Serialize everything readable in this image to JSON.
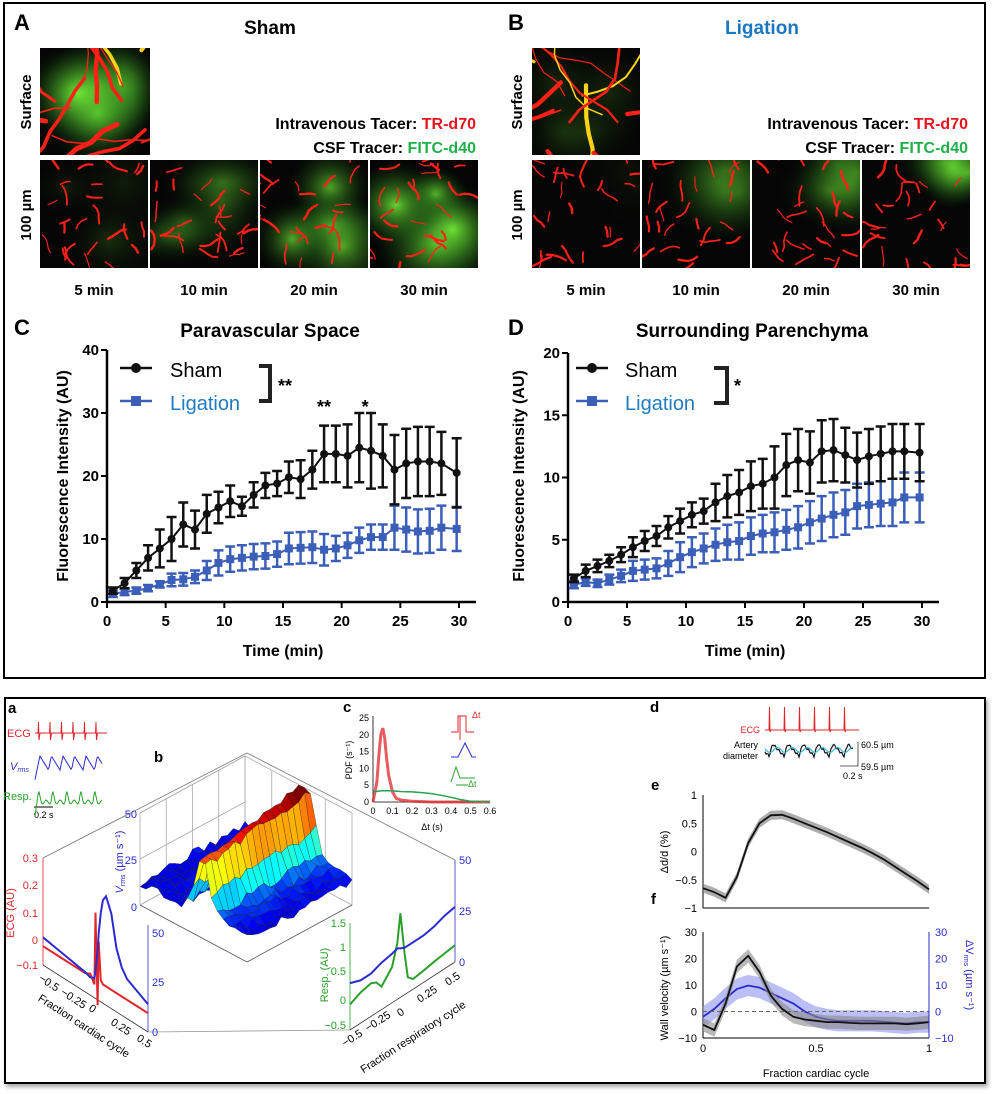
{
  "colors": {
    "sham": "#111111",
    "ligation": "#3b5fb8",
    "ligation_text": "#1f7cc4",
    "tracer_red": "#e8141c",
    "tracer_green": "#1fb04a",
    "ecg_red": "#e0262b",
    "vrms_blue": "#2b2bd0",
    "resp_green": "#2aa02a"
  },
  "panel_A": {
    "label": "A",
    "title": "Sham",
    "row_surface": "Surface",
    "row_depth": "100 µm",
    "iv_label": "Intravenous Tacer: ",
    "iv_value": "TR-d70",
    "csf_label": "CSF Tracer: ",
    "csf_value": "FITC-d40",
    "times": [
      "5 min",
      "10 min",
      "20 min",
      "30 min"
    ]
  },
  "panel_B": {
    "label": "B",
    "title": "Ligation",
    "row_surface": "Surface",
    "row_depth": "100 µm",
    "iv_label": "Intravenous Tacer: ",
    "iv_value": "TR-d70",
    "csf_label": "CSF Tracer: ",
    "csf_value": "FITC-d40",
    "times": [
      "5 min",
      "10 min",
      "20 min",
      "30 min"
    ]
  },
  "chart_data": [
    {
      "panel_label": "C",
      "type": "line",
      "title": "Paravascular Space",
      "xlabel": "Time (min)",
      "ylabel": "Fluorescence Intensity (AU)",
      "xlim": [
        0,
        30
      ],
      "ylim": [
        0,
        40
      ],
      "xticks": [
        0,
        5,
        10,
        15,
        20,
        25,
        30
      ],
      "yticks": [
        0,
        10,
        20,
        30,
        40
      ],
      "legend": "top-left",
      "legend_significance": "**",
      "x": [
        0.5,
        1.5,
        2.5,
        3.5,
        4.5,
        5.5,
        6.5,
        7.5,
        8.5,
        9.5,
        10.5,
        11.5,
        12.5,
        13.5,
        14.5,
        15.5,
        16.5,
        17.5,
        18.5,
        19.5,
        20.5,
        21.5,
        22.5,
        23.5,
        24.5,
        25.5,
        26.5,
        27.5,
        28.5,
        29.8
      ],
      "series": [
        {
          "name": "Sham",
          "marker": "circle",
          "values": [
            1.8,
            3,
            5,
            7,
            8.5,
            10,
            12.3,
            11.5,
            14,
            15,
            16,
            15.2,
            17,
            18.5,
            18.8,
            19.8,
            19.5,
            21,
            23.5,
            23.5,
            23.2,
            24.5,
            24,
            23.2,
            21,
            22,
            22.3,
            22.3,
            22,
            20.5
          ],
          "error": [
            0.5,
            0.8,
            1.2,
            2,
            3,
            3.5,
            3.5,
            3,
            3,
            2.5,
            2.5,
            1.5,
            2,
            2,
            2,
            2.5,
            3,
            3,
            4.5,
            4.5,
            5,
            5.5,
            6,
            5,
            5.5,
            5.5,
            5.5,
            5.5,
            5,
            5.5
          ]
        },
        {
          "name": "Ligation",
          "marker": "square",
          "values": [
            1.3,
            1.6,
            1.8,
            2.2,
            2.8,
            3.5,
            3.6,
            4,
            5,
            6.2,
            6.8,
            7,
            7.2,
            7.3,
            7.6,
            8.5,
            8.6,
            8.7,
            8.3,
            8.5,
            9,
            9.8,
            10.3,
            10.3,
            11.8,
            11.5,
            11.2,
            11.3,
            11.8,
            11.6
          ],
          "error": [
            0.5,
            0.5,
            0.5,
            0.5,
            0.5,
            1,
            1,
            1,
            1.5,
            2,
            2,
            2,
            2,
            2,
            2,
            2.5,
            2.5,
            2.5,
            2.5,
            2,
            2,
            2,
            2,
            2,
            3.5,
            3.5,
            3.5,
            3.5,
            3.5,
            3.5
          ]
        }
      ],
      "annotations": [
        {
          "x": 18.5,
          "label": "**"
        },
        {
          "x": 22,
          "label": "*"
        }
      ]
    },
    {
      "panel_label": "D",
      "type": "line",
      "title": "Surrounding Parenchyma",
      "xlabel": "Time (min)",
      "ylabel": "Fluorescence Intensity (AU)",
      "xlim": [
        0,
        30
      ],
      "ylim": [
        0,
        20
      ],
      "xticks": [
        0,
        5,
        10,
        15,
        20,
        25,
        30
      ],
      "yticks": [
        0,
        5,
        10,
        15,
        20
      ],
      "legend": "top-left",
      "legend_significance": "*",
      "x": [
        0.5,
        1.5,
        2.5,
        3.5,
        4.5,
        5.5,
        6.5,
        7.5,
        8.5,
        9.5,
        10.5,
        11.5,
        12.5,
        13.5,
        14.5,
        15.5,
        16.5,
        17.5,
        18.5,
        19.5,
        20.5,
        21.5,
        22.5,
        23.5,
        24.5,
        25.5,
        26.5,
        27.5,
        28.5,
        29.8
      ],
      "series": [
        {
          "name": "Sham",
          "marker": "circle",
          "values": [
            1.9,
            2.5,
            2.9,
            3.3,
            3.8,
            4.4,
            4.9,
            5.3,
            6,
            6.5,
            7,
            7.3,
            8,
            8.5,
            8.8,
            9.3,
            9.5,
            10,
            11,
            11.4,
            11.2,
            12.1,
            12.2,
            11.8,
            11.4,
            11.7,
            11.9,
            12.1,
            12.1,
            12.0
          ],
          "error": [
            0.3,
            0.5,
            0.5,
            0.5,
            0.6,
            0.8,
            0.8,
            0.8,
            0.9,
            1,
            1,
            1,
            1.5,
            1.7,
            1.8,
            2,
            2,
            2.5,
            2.5,
            2.5,
            2.5,
            2.5,
            2.5,
            2.2,
            2.2,
            2.2,
            2.2,
            2.2,
            2.2,
            2.3
          ]
        },
        {
          "name": "Ligation",
          "marker": "square",
          "values": [
            1.4,
            1.6,
            1.5,
            1.8,
            2.1,
            2.5,
            2.6,
            2.7,
            3.1,
            3.6,
            4.0,
            4.3,
            4.6,
            4.8,
            4.9,
            5.3,
            5.5,
            5.6,
            5.8,
            6.0,
            6.4,
            6.7,
            7.0,
            7.2,
            7.7,
            7.8,
            7.9,
            8.0,
            8.4,
            8.4
          ],
          "error": [
            0.3,
            0.3,
            0.3,
            0.4,
            0.5,
            0.8,
            0.8,
            0.8,
            1,
            1.2,
            1.2,
            1.2,
            1.3,
            1.4,
            1.5,
            1.5,
            1.5,
            1.6,
            1.6,
            1.7,
            1.7,
            1.8,
            1.8,
            1.8,
            1.8,
            1.8,
            1.8,
            1.9,
            2,
            2
          ]
        }
      ]
    },
    {
      "panel_label": "a",
      "type": "line",
      "traces": [
        {
          "label": "ECG"
        },
        {
          "label_main": "V",
          "label_sub": "rms"
        },
        {
          "label": "Resp."
        }
      ],
      "scale_bar": "0.2 s"
    },
    {
      "panel_label": "b",
      "type": "area",
      "z_label_main": "V",
      "z_label_sub": "rms",
      "z_label_unit": " (µm s⁻¹)",
      "zticks": [
        "0",
        "25",
        "50"
      ],
      "cardiac": {
        "xlabel": "Fraction cardiac cycle",
        "xticks": [
          "−0.5",
          "−0.25",
          "0",
          "0.25",
          "0.5"
        ],
        "left_label": "ECG (AU)",
        "left_ticks": [
          "0.3",
          "0.2",
          "0.1",
          "0",
          "−0.1"
        ],
        "right_ticks": [
          "50",
          "25",
          "0"
        ],
        "x": [
          -0.5,
          -0.4,
          -0.3,
          -0.2,
          -0.1,
          -0.05,
          -0.01,
          0.0,
          0.02,
          0.03,
          0.05,
          0.07,
          0.1,
          0.15,
          0.2,
          0.25,
          0.3,
          0.4,
          0.5
        ],
        "ecg": [
          -0.03,
          -0.03,
          -0.03,
          -0.03,
          -0.03,
          -0.02,
          -0.05,
          0.22,
          -0.12,
          0.12,
          -0.02,
          -0.03,
          -0.03,
          -0.03,
          -0.03,
          -0.03,
          -0.03,
          -0.03,
          -0.03
        ],
        "vrms": [
          14,
          13,
          12,
          11,
          10,
          9,
          10,
          14,
          25,
          34,
          45,
          52,
          55,
          48,
          32,
          24,
          20,
          17,
          14
        ]
      },
      "respiratory": {
        "xlabel": "Fraction respiratory cycle",
        "xticks": [
          "−0.5",
          "−0.25",
          "0",
          "0.25",
          "0.5"
        ],
        "left_label": "Resp. (AU)",
        "left_ticks": [
          "1.5",
          "1",
          "0.5",
          "0",
          "−0.5"
        ],
        "right_ticks": [
          "50",
          "25",
          "0"
        ],
        "x": [
          -0.5,
          -0.4,
          -0.3,
          -0.25,
          -0.2,
          -0.1,
          -0.05,
          -0.02,
          0.02,
          0.05,
          0.1,
          0.2,
          0.3,
          0.4,
          0.5
        ],
        "resp": [
          0,
          0.1,
          0.15,
          0.1,
          -0.05,
          0.2,
          0.6,
          1.15,
          0.3,
          -0.2,
          -0.3,
          -0.27,
          -0.23,
          -0.2,
          -0.17
        ],
        "vrms": [
          23,
          21,
          21,
          22,
          23,
          24,
          25,
          24,
          23,
          23,
          23,
          23,
          24,
          26,
          27
        ]
      }
    },
    {
      "panel_label": "c",
      "type": "line",
      "xlabel": "Δt (s)",
      "ylabel": "PDF (s⁻¹)",
      "xlim": [
        0,
        0.6
      ],
      "ylim": [
        0,
        25
      ],
      "xticks": [
        "0",
        "0.1",
        "0.2",
        "0.3",
        "0.4",
        "0.5",
        "0.6"
      ],
      "yticks": [
        "0",
        "5",
        "10",
        "15",
        "20",
        "25"
      ],
      "inset_label": "Δt",
      "series": [
        {
          "color": "#e0262b",
          "x": [
            0,
            0.02,
            0.03,
            0.04,
            0.05,
            0.06,
            0.07,
            0.08,
            0.1,
            0.12,
            0.15,
            0.2,
            0.3,
            0.6
          ],
          "values": [
            0,
            6,
            14,
            20,
            22,
            19,
            13,
            8,
            3,
            1,
            0.5,
            0.2,
            0,
            0
          ]
        },
        {
          "color": "#2aa050",
          "x": [
            0,
            0.05,
            0.1,
            0.15,
            0.2,
            0.25,
            0.3,
            0.35,
            0.4,
            0.45,
            0.5,
            0.6
          ],
          "values": [
            3,
            3.4,
            3.3,
            3.1,
            3,
            2.8,
            2.5,
            2,
            1.4,
            0.7,
            0.2,
            0
          ]
        }
      ]
    },
    {
      "panel_label": "d",
      "type": "line",
      "ecg_label": "ECG",
      "diameter_label_1": "Artery",
      "diameter_label_2": "diameter",
      "scale_top": "60.5 µm",
      "scale_bottom": "59.5 µm",
      "scale_time": "0.2 s"
    },
    {
      "panel_label": "e",
      "type": "area",
      "ylabel": "Δd/d (%)",
      "xlim": [
        0,
        1
      ],
      "ylim": [
        -1,
        1
      ],
      "yticks": [
        "1",
        "0.5",
        "0",
        "−0.5",
        "−1"
      ],
      "x": [
        0,
        0.05,
        0.1,
        0.15,
        0.2,
        0.25,
        0.3,
        0.35,
        0.4,
        0.45,
        0.5,
        0.55,
        0.6,
        0.65,
        0.7,
        0.75,
        0.8,
        0.85,
        0.9,
        0.95,
        1
      ],
      "values": [
        -0.65,
        -0.72,
        -0.82,
        -0.45,
        0.15,
        0.5,
        0.64,
        0.65,
        0.58,
        0.5,
        0.42,
        0.34,
        0.25,
        0.16,
        0.07,
        -0.03,
        -0.14,
        -0.27,
        -0.4,
        -0.53,
        -0.67
      ],
      "band": 0.08
    },
    {
      "panel_label": "f",
      "type": "area",
      "xlabel": "Fraction cardiac cycle",
      "ylabel": "Wall velocity (µm s⁻¹)",
      "y2label_main": "ΔV",
      "y2label_sub": "rms",
      "y2label_unit": " (µm s⁻¹)",
      "xlim": [
        0,
        1
      ],
      "ylim": [
        -10,
        30
      ],
      "xticks": [
        "0",
        "0.5",
        "1"
      ],
      "yticks": [
        "30",
        "20",
        "10",
        "0",
        "−10"
      ],
      "y2ticks": [
        "30",
        "20",
        "10",
        "0",
        "−10"
      ],
      "x": [
        0,
        0.05,
        0.1,
        0.15,
        0.2,
        0.25,
        0.3,
        0.35,
        0.4,
        0.45,
        0.5,
        0.55,
        0.6,
        0.65,
        0.7,
        0.75,
        0.8,
        0.85,
        0.9,
        0.95,
        1
      ],
      "series": [
        {
          "name": "Wall velocity",
          "color": "#111111",
          "band_color": "#888888",
          "band": 2.5,
          "values": [
            -5,
            -7,
            3,
            17,
            21,
            15,
            6,
            1,
            -2,
            -3,
            -3.5,
            -4,
            -4,
            -4.3,
            -4.5,
            -4.5,
            -4.5,
            -4.5,
            -4.8,
            -4.5,
            -4
          ]
        },
        {
          "name": "ΔVrms",
          "color": "#2a2ac8",
          "band_color": "#8f95ef",
          "band": 4,
          "values": [
            -2,
            1,
            5,
            8.5,
            9.8,
            9,
            7,
            5,
            3,
            0,
            -2,
            -3,
            -3.5,
            -3.5,
            -3.5,
            -3.5,
            -3.8,
            -4.2,
            -4.5,
            -4,
            -4
          ]
        }
      ],
      "reference_line": 0
    }
  ]
}
